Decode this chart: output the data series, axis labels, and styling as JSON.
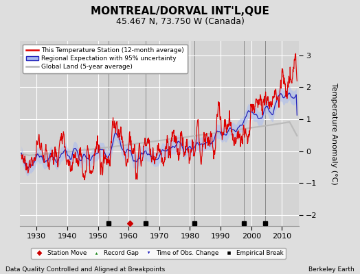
{
  "title": "MONTREAL/DORVAL INT'L,QUE",
  "subtitle": "45.467 N, 73.750 W (Canada)",
  "xlabel_bottom": "Data Quality Controlled and Aligned at Breakpoints",
  "xlabel_right": "Berkeley Earth",
  "ylabel": "Temperature Anomaly (°C)",
  "xlim": [
    1924.5,
    2015.5
  ],
  "ylim": [
    -2.35,
    3.45
  ],
  "yticks": [
    -2,
    -1,
    0,
    1,
    2,
    3
  ],
  "xticks": [
    1930,
    1940,
    1950,
    1960,
    1970,
    1980,
    1990,
    2000,
    2010
  ],
  "bg_color": "#dedede",
  "plot_bg_color": "#d4d4d4",
  "grid_color": "#ffffff",
  "station_move_years": [
    1960.3
  ],
  "empirical_break_years": [
    1953.5,
    1965.5,
    1981.5,
    1997.5,
    2004.5
  ],
  "vertical_line_years": [
    1953.5,
    1965.5,
    1981.5,
    1997.5,
    2004.5
  ],
  "red_line_color": "#dd0000",
  "blue_line_color": "#2222bb",
  "blue_fill_color": "#aabbee",
  "gray_line_color": "#b8b8b8",
  "title_fontsize": 11,
  "subtitle_fontsize": 9,
  "tick_fontsize": 8,
  "ylabel_fontsize": 8
}
